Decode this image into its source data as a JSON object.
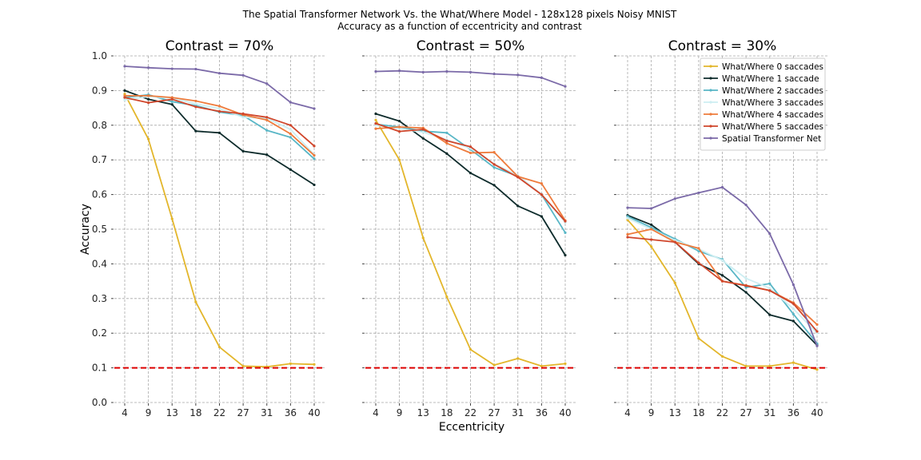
{
  "figure": {
    "title_line1": "The Spatial Transformer Network Vs. the What/Where Model - 128x128 pixels Noisy MNIST",
    "title_line2": "Accuracy as a function of eccentricity and contrast",
    "xlabel": "Eccentricity",
    "ylabel": "Accuracy",
    "x_ticks": [
      "4",
      "9",
      "13",
      "18",
      "22",
      "27",
      "31",
      "36",
      "40"
    ],
    "y_ticks": [
      "0.0",
      "0.1",
      "0.2",
      "0.3",
      "0.4",
      "0.5",
      "0.6",
      "0.7",
      "0.8",
      "0.9",
      "1.0"
    ],
    "chance_level": 0.1,
    "chance_color": "#dd0000",
    "series_meta": [
      {
        "name": "What/Where 0 saccades",
        "color": "#e3b62b"
      },
      {
        "name": "What/Where 1 saccade",
        "color": "#0d2b2b"
      },
      {
        "name": "What/Where 2 saccades",
        "color": "#58b6c6"
      },
      {
        "name": "What/Where 3 saccades",
        "color": "#cdeef2"
      },
      {
        "name": "What/Where 4 saccades",
        "color": "#ee7b3c"
      },
      {
        "name": "What/Where 5 saccades",
        "color": "#d0462b"
      },
      {
        "name": "Spatial Transformer Net",
        "color": "#7b6aa8"
      }
    ]
  },
  "chart_data": [
    {
      "type": "line",
      "title": "Contrast = 70%",
      "x": [
        4,
        9,
        13,
        18,
        22,
        27,
        31,
        36,
        40
      ],
      "ylim": [
        0,
        1.0
      ],
      "grid": true,
      "series": [
        {
          "name": "What/Where 0 saccades",
          "values": [
            0.89,
            0.76,
            0.53,
            0.29,
            0.16,
            0.105,
            0.103,
            0.112,
            0.11
          ]
        },
        {
          "name": "What/Where 1 saccade",
          "values": [
            0.9,
            0.875,
            0.86,
            0.783,
            0.778,
            0.725,
            0.715,
            0.672,
            0.628
          ]
        },
        {
          "name": "What/Where 2 saccades",
          "values": [
            0.88,
            0.888,
            0.868,
            0.857,
            0.838,
            0.828,
            0.785,
            0.765,
            0.703
          ]
        },
        {
          "name": "What/Where 3 saccades",
          "values": [
            0.873,
            0.883,
            0.878,
            0.862,
            0.848,
            0.823,
            0.82,
            0.788,
            0.715
          ]
        },
        {
          "name": "What/Where 4 saccades",
          "values": [
            0.885,
            0.885,
            0.88,
            0.87,
            0.855,
            0.83,
            0.815,
            0.775,
            0.713
          ]
        },
        {
          "name": "What/Where 5 saccades",
          "values": [
            0.88,
            0.865,
            0.875,
            0.853,
            0.84,
            0.833,
            0.823,
            0.8,
            0.74
          ]
        },
        {
          "name": "Spatial Transformer Net",
          "values": [
            0.97,
            0.966,
            0.963,
            0.962,
            0.95,
            0.944,
            0.92,
            0.866,
            0.848
          ]
        }
      ]
    },
    {
      "type": "line",
      "title": "Contrast = 50%",
      "x": [
        4,
        9,
        13,
        18,
        22,
        27,
        31,
        36,
        40
      ],
      "ylim": [
        0,
        1.0
      ],
      "grid": true,
      "series": [
        {
          "name": "What/Where 0 saccades",
          "values": [
            0.815,
            0.7,
            0.475,
            0.305,
            0.153,
            0.108,
            0.127,
            0.105,
            0.112
          ]
        },
        {
          "name": "What/Where 1 saccade",
          "values": [
            0.833,
            0.812,
            0.762,
            0.718,
            0.662,
            0.627,
            0.567,
            0.537,
            0.425
          ]
        },
        {
          "name": "What/Where 2 saccades",
          "values": [
            0.803,
            0.795,
            0.783,
            0.778,
            0.73,
            0.678,
            0.653,
            0.6,
            0.49
          ]
        },
        {
          "name": "What/Where 3 saccades",
          "values": [
            0.8,
            0.79,
            0.78,
            0.758,
            0.733,
            0.688,
            0.655,
            0.6,
            0.52
          ]
        },
        {
          "name": "What/Where 4 saccades",
          "values": [
            0.79,
            0.795,
            0.792,
            0.748,
            0.72,
            0.722,
            0.652,
            0.632,
            0.525
          ]
        },
        {
          "name": "What/Where 5 saccades",
          "values": [
            0.805,
            0.782,
            0.788,
            0.755,
            0.738,
            0.687,
            0.65,
            0.6,
            0.523
          ]
        },
        {
          "name": "Spatial Transformer Net",
          "values": [
            0.955,
            0.957,
            0.953,
            0.955,
            0.953,
            0.948,
            0.945,
            0.937,
            0.912
          ]
        }
      ]
    },
    {
      "type": "line",
      "title": "Contrast = 30%",
      "x": [
        4,
        9,
        13,
        18,
        22,
        27,
        31,
        36,
        40
      ],
      "ylim": [
        0,
        1.0
      ],
      "grid": true,
      "legend": "top-right",
      "series": [
        {
          "name": "What/Where 0 saccades",
          "values": [
            0.527,
            0.45,
            0.345,
            0.185,
            0.133,
            0.105,
            0.105,
            0.115,
            0.095
          ]
        },
        {
          "name": "What/Where 1 saccade",
          "values": [
            0.54,
            0.513,
            0.463,
            0.4,
            0.367,
            0.318,
            0.253,
            0.235,
            0.165
          ]
        },
        {
          "name": "What/Where 2 saccades",
          "values": [
            0.537,
            0.505,
            0.472,
            0.437,
            0.413,
            0.332,
            0.343,
            0.255,
            0.17
          ]
        },
        {
          "name": "What/Where 3 saccades",
          "values": [
            0.532,
            0.5,
            0.468,
            0.443,
            0.41,
            0.358,
            0.33,
            0.27,
            0.2
          ]
        },
        {
          "name": "What/Where 4 saccades",
          "values": [
            0.485,
            0.5,
            0.463,
            0.445,
            0.35,
            0.338,
            0.323,
            0.288,
            0.225
          ]
        },
        {
          "name": "What/Where 5 saccades",
          "values": [
            0.477,
            0.47,
            0.463,
            0.403,
            0.35,
            0.337,
            0.323,
            0.285,
            0.205
          ]
        },
        {
          "name": "Spatial Transformer Net",
          "values": [
            0.562,
            0.56,
            0.588,
            0.605,
            0.621,
            0.57,
            0.487,
            0.34,
            0.163
          ]
        }
      ]
    }
  ]
}
